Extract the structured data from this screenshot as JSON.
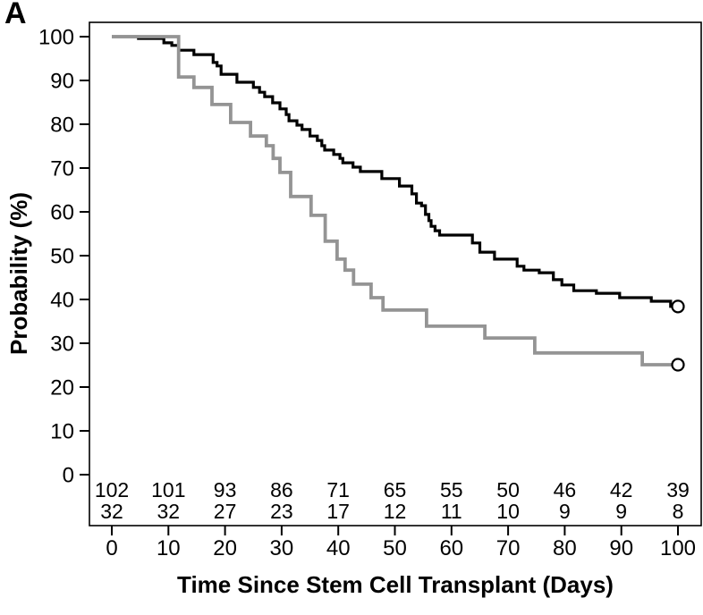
{
  "panel_label": "A",
  "colors": {
    "background": "#ffffff",
    "axis": "#000000",
    "series_black": "#000000",
    "series_gray": "#949494",
    "at_risk_gray_text": "#8f8f8f"
  },
  "chart_data": {
    "type": "line",
    "variant": "kaplan-meier-step",
    "title": "",
    "xlabel": "Time Since Stem Cell Transplant (Days)",
    "ylabel": "Probability (%)",
    "xlim": [
      0,
      100
    ],
    "ylim": [
      0,
      100
    ],
    "xticks": [
      0,
      10,
      20,
      30,
      40,
      50,
      60,
      70,
      80,
      90,
      100
    ],
    "yticks": [
      0,
      10,
      20,
      30,
      40,
      50,
      60,
      70,
      80,
      90,
      100
    ],
    "grid": false,
    "legend": "none",
    "series": [
      {
        "name": "black",
        "color": "#000000",
        "stroke_width": 3.2,
        "censored_at_end": true,
        "points": [
          [
            0,
            100
          ],
          [
            4.7,
            99.6
          ],
          [
            9.2,
            98.6
          ],
          [
            10.6,
            98.0
          ],
          [
            11.8,
            96.9
          ],
          [
            14.5,
            95.9
          ],
          [
            17.9,
            94.1
          ],
          [
            18.6,
            93.3
          ],
          [
            19.3,
            91.4
          ],
          [
            22.1,
            89.6
          ],
          [
            25.0,
            88.4
          ],
          [
            26.1,
            87.3
          ],
          [
            27.0,
            86.3
          ],
          [
            28.4,
            84.9
          ],
          [
            29.7,
            83.5
          ],
          [
            30.8,
            82.2
          ],
          [
            31.3,
            80.8
          ],
          [
            32.7,
            79.8
          ],
          [
            33.6,
            78.8
          ],
          [
            35.0,
            77.3
          ],
          [
            36.3,
            76.3
          ],
          [
            37.1,
            75.1
          ],
          [
            37.6,
            74.1
          ],
          [
            39.2,
            73.1
          ],
          [
            40.3,
            72.2
          ],
          [
            40.8,
            71.2
          ],
          [
            42.6,
            70.2
          ],
          [
            43.9,
            69.2
          ],
          [
            47.7,
            67.6
          ],
          [
            50.8,
            65.9
          ],
          [
            53.0,
            64.1
          ],
          [
            53.8,
            62.0
          ],
          [
            54.7,
            61.4
          ],
          [
            55.4,
            59.4
          ],
          [
            56.0,
            58.0
          ],
          [
            56.4,
            56.7
          ],
          [
            57.1,
            55.7
          ],
          [
            57.9,
            54.7
          ],
          [
            63.7,
            52.9
          ],
          [
            65.0,
            50.8
          ],
          [
            67.6,
            49.2
          ],
          [
            71.6,
            47.6
          ],
          [
            72.8,
            46.7
          ],
          [
            75.5,
            46.1
          ],
          [
            78.0,
            44.5
          ],
          [
            79.5,
            43.3
          ],
          [
            81.6,
            42.0
          ],
          [
            85.6,
            41.4
          ],
          [
            89.7,
            40.4
          ],
          [
            95.3,
            39.6
          ],
          [
            98.7,
            38.4
          ],
          [
            100,
            38.4
          ]
        ]
      },
      {
        "name": "gray",
        "color": "#949494",
        "stroke_width": 3.8,
        "censored_at_end": true,
        "points": [
          [
            0,
            100
          ],
          [
            11.8,
            90.8
          ],
          [
            14.5,
            88.4
          ],
          [
            17.7,
            84.5
          ],
          [
            21.0,
            80.4
          ],
          [
            24.5,
            77.3
          ],
          [
            27.3,
            75.1
          ],
          [
            28.5,
            72.2
          ],
          [
            29.7,
            69.0
          ],
          [
            31.6,
            63.5
          ],
          [
            35.2,
            59.2
          ],
          [
            37.7,
            53.3
          ],
          [
            39.8,
            49.2
          ],
          [
            41.2,
            46.7
          ],
          [
            42.7,
            43.5
          ],
          [
            45.8,
            40.4
          ],
          [
            47.9,
            37.6
          ],
          [
            55.6,
            33.9
          ],
          [
            65.9,
            31.2
          ],
          [
            74.7,
            27.8
          ],
          [
            93.7,
            25.1
          ],
          [
            100,
            25.1
          ]
        ]
      }
    ],
    "at_risk_table": {
      "x": [
        0,
        10,
        20,
        30,
        40,
        50,
        60,
        70,
        80,
        90,
        100
      ],
      "rows": [
        {
          "series": "black",
          "color": "#000000",
          "values": [
            "102",
            "101",
            "93",
            "86",
            "71",
            "65",
            "55",
            "50",
            "46",
            "42",
            "39"
          ]
        },
        {
          "series": "gray",
          "color": "#8f8f8f",
          "values": [
            "32",
            "32",
            "27",
            "23",
            "17",
            "12",
            "11",
            "10",
            "9",
            "9",
            "8"
          ]
        }
      ]
    }
  }
}
